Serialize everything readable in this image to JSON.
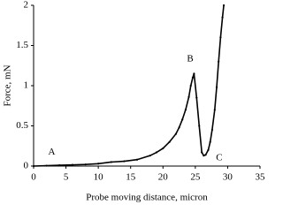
{
  "chart_data": {
    "type": "line",
    "xlabel": "Probe moving distance, micron",
    "ylabel": "Force, mN",
    "x": [
      0,
      2,
      4,
      6,
      8,
      10,
      12,
      14,
      16,
      18,
      19,
      20,
      21,
      22,
      22.5,
      23,
      23.5,
      24,
      24.3,
      24.6,
      24.8,
      25.2,
      25.6,
      26,
      26.3,
      26.6,
      27,
      27.3,
      27.6,
      28,
      28.3,
      28.6,
      28.9,
      29.2,
      29.4
    ],
    "series": [
      {
        "name": "Force",
        "color": "#000000",
        "values": [
          0,
          0.005,
          0.01,
          0.015,
          0.02,
          0.03,
          0.05,
          0.06,
          0.08,
          0.13,
          0.17,
          0.22,
          0.3,
          0.4,
          0.48,
          0.58,
          0.7,
          0.86,
          1.0,
          1.1,
          1.15,
          0.85,
          0.5,
          0.17,
          0.13,
          0.14,
          0.2,
          0.3,
          0.45,
          0.7,
          0.98,
          1.3,
          1.6,
          1.85,
          2.0
        ]
      }
    ],
    "annotations": [
      {
        "text": "A",
        "x": 2.8,
        "y": 0.17
      },
      {
        "text": "B",
        "x": 24.2,
        "y": 1.33
      },
      {
        "text": "C",
        "x": 28.7,
        "y": 0.1
      }
    ],
    "xlim": [
      0,
      35
    ],
    "xticks": [
      0,
      5,
      10,
      15,
      20,
      25,
      30,
      35
    ],
    "ylim": [
      0,
      2
    ],
    "yticks": [
      0,
      0.5,
      1,
      1.5,
      2
    ],
    "grid": false
  }
}
